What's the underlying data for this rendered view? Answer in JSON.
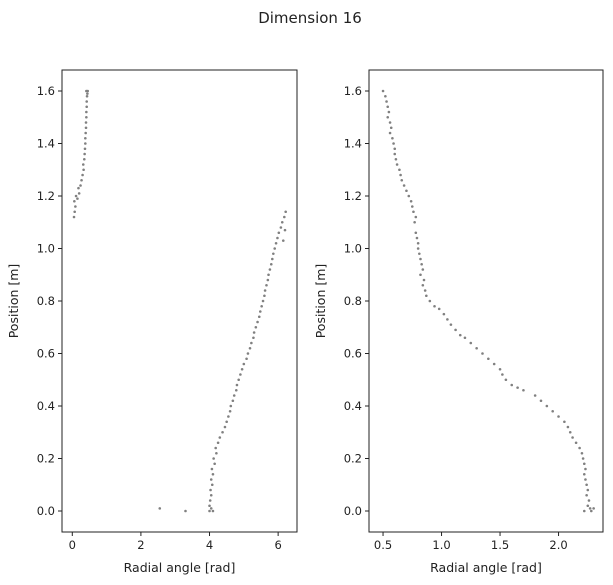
{
  "chart_data": {
    "title": "Dimension 16",
    "type": "scatter",
    "marker_color": "#808080",
    "grid": false,
    "subplots": [
      {
        "type": "scatter",
        "xlabel": "Radial angle [rad]",
        "ylabel": "Position [m]",
        "xlim": [
          -0.3,
          6.55
        ],
        "ylim": [
          -0.08,
          1.68
        ],
        "xticks": [
          0,
          2,
          4,
          6
        ],
        "xtick_labels": [
          "0",
          "2",
          "4",
          "6"
        ],
        "yticks": [
          0.0,
          0.2,
          0.4,
          0.6,
          0.8,
          1.0,
          1.2,
          1.4,
          1.6
        ],
        "ytick_labels": [
          "0.0",
          "0.2",
          "0.4",
          "0.6",
          "0.8",
          "1.0",
          "1.2",
          "1.4",
          "1.6"
        ],
        "points": [
          [
            0.05,
            1.12
          ],
          [
            0.07,
            1.14
          ],
          [
            0.09,
            1.16
          ],
          [
            0.06,
            1.18
          ],
          [
            0.11,
            1.2
          ],
          [
            0.15,
            1.19
          ],
          [
            0.2,
            1.21
          ],
          [
            0.18,
            1.23
          ],
          [
            0.24,
            1.24
          ],
          [
            0.27,
            1.26
          ],
          [
            0.3,
            1.28
          ],
          [
            0.33,
            1.3
          ],
          [
            0.32,
            1.32
          ],
          [
            0.35,
            1.34
          ],
          [
            0.36,
            1.36
          ],
          [
            0.37,
            1.38
          ],
          [
            0.38,
            1.4
          ],
          [
            0.38,
            1.42
          ],
          [
            0.39,
            1.44
          ],
          [
            0.4,
            1.46
          ],
          [
            0.4,
            1.48
          ],
          [
            0.41,
            1.5
          ],
          [
            0.41,
            1.52
          ],
          [
            0.42,
            1.54
          ],
          [
            0.42,
            1.56
          ],
          [
            0.43,
            1.58
          ],
          [
            0.44,
            1.59
          ],
          [
            0.45,
            1.6
          ],
          [
            0.41,
            1.6
          ],
          [
            2.55,
            0.01
          ],
          [
            3.3,
            0.0
          ],
          [
            4.0,
            0.0
          ],
          [
            4.05,
            0.01
          ],
          [
            4.1,
            0.0
          ],
          [
            4.0,
            0.02
          ],
          [
            4.02,
            0.04
          ],
          [
            4.05,
            0.06
          ],
          [
            4.03,
            0.08
          ],
          [
            4.08,
            0.1
          ],
          [
            4.05,
            0.12
          ],
          [
            4.1,
            0.14
          ],
          [
            4.07,
            0.16
          ],
          [
            4.15,
            0.18
          ],
          [
            4.12,
            0.2
          ],
          [
            4.2,
            0.22
          ],
          [
            4.18,
            0.24
          ],
          [
            4.25,
            0.26
          ],
          [
            4.3,
            0.28
          ],
          [
            4.38,
            0.3
          ],
          [
            4.45,
            0.32
          ],
          [
            4.5,
            0.34
          ],
          [
            4.55,
            0.36
          ],
          [
            4.6,
            0.38
          ],
          [
            4.62,
            0.4
          ],
          [
            4.68,
            0.42
          ],
          [
            4.72,
            0.44
          ],
          [
            4.78,
            0.46
          ],
          [
            4.8,
            0.48
          ],
          [
            4.85,
            0.5
          ],
          [
            4.9,
            0.52
          ],
          [
            4.95,
            0.54
          ],
          [
            5.0,
            0.56
          ],
          [
            5.08,
            0.58
          ],
          [
            5.12,
            0.6
          ],
          [
            5.18,
            0.62
          ],
          [
            5.22,
            0.64
          ],
          [
            5.28,
            0.66
          ],
          [
            5.3,
            0.68
          ],
          [
            5.35,
            0.7
          ],
          [
            5.4,
            0.72
          ],
          [
            5.45,
            0.74
          ],
          [
            5.48,
            0.76
          ],
          [
            5.52,
            0.78
          ],
          [
            5.56,
            0.8
          ],
          [
            5.6,
            0.82
          ],
          [
            5.62,
            0.84
          ],
          [
            5.66,
            0.86
          ],
          [
            5.7,
            0.88
          ],
          [
            5.72,
            0.9
          ],
          [
            5.76,
            0.92
          ],
          [
            5.8,
            0.94
          ],
          [
            5.83,
            0.96
          ],
          [
            5.86,
            0.98
          ],
          [
            5.9,
            1.0
          ],
          [
            5.94,
            1.02
          ],
          [
            5.98,
            1.04
          ],
          [
            6.02,
            1.06
          ],
          [
            6.08,
            1.08
          ],
          [
            6.12,
            1.1
          ],
          [
            6.18,
            1.12
          ],
          [
            6.22,
            1.14
          ],
          [
            6.2,
            1.07
          ],
          [
            6.15,
            1.03
          ]
        ]
      },
      {
        "type": "scatter",
        "xlabel": "Radial angle [rad]",
        "ylabel": "Position [m]",
        "xlim": [
          0.38,
          2.38
        ],
        "ylim": [
          -0.08,
          1.68
        ],
        "xticks": [
          0.5,
          1.0,
          1.5,
          2.0
        ],
        "xtick_labels": [
          "0.5",
          "1.0",
          "1.5",
          "2.0"
        ],
        "yticks": [
          0.0,
          0.2,
          0.4,
          0.6,
          0.8,
          1.0,
          1.2,
          1.4,
          1.6
        ],
        "ytick_labels": [
          "0.0",
          "0.2",
          "0.4",
          "0.6",
          "0.8",
          "1.0",
          "1.2",
          "1.4",
          "1.6"
        ],
        "points": [
          [
            0.5,
            1.6
          ],
          [
            0.52,
            1.58
          ],
          [
            0.53,
            1.56
          ],
          [
            0.54,
            1.54
          ],
          [
            0.55,
            1.52
          ],
          [
            0.54,
            1.5
          ],
          [
            0.56,
            1.48
          ],
          [
            0.57,
            1.46
          ],
          [
            0.56,
            1.44
          ],
          [
            0.58,
            1.42
          ],
          [
            0.59,
            1.4
          ],
          [
            0.6,
            1.38
          ],
          [
            0.6,
            1.36
          ],
          [
            0.61,
            1.34
          ],
          [
            0.62,
            1.32
          ],
          [
            0.64,
            1.3
          ],
          [
            0.65,
            1.28
          ],
          [
            0.66,
            1.26
          ],
          [
            0.68,
            1.24
          ],
          [
            0.7,
            1.22
          ],
          [
            0.72,
            1.2
          ],
          [
            0.74,
            1.18
          ],
          [
            0.75,
            1.16
          ],
          [
            0.76,
            1.14
          ],
          [
            0.78,
            1.12
          ],
          [
            0.77,
            1.1
          ],
          [
            0.78,
            1.06
          ],
          [
            0.79,
            1.04
          ],
          [
            0.8,
            1.02
          ],
          [
            0.8,
            1.0
          ],
          [
            0.81,
            0.98
          ],
          [
            0.82,
            0.96
          ],
          [
            0.83,
            0.94
          ],
          [
            0.84,
            0.92
          ],
          [
            0.82,
            0.9
          ],
          [
            0.85,
            0.88
          ],
          [
            0.84,
            0.86
          ],
          [
            0.86,
            0.84
          ],
          [
            0.87,
            0.82
          ],
          [
            0.9,
            0.8
          ],
          [
            0.94,
            0.78
          ],
          [
            0.98,
            0.77
          ],
          [
            1.02,
            0.75
          ],
          [
            1.05,
            0.73
          ],
          [
            1.08,
            0.71
          ],
          [
            1.12,
            0.69
          ],
          [
            1.16,
            0.67
          ],
          [
            1.2,
            0.66
          ],
          [
            1.25,
            0.64
          ],
          [
            1.3,
            0.62
          ],
          [
            1.35,
            0.6
          ],
          [
            1.4,
            0.58
          ],
          [
            1.45,
            0.56
          ],
          [
            1.5,
            0.54
          ],
          [
            1.52,
            0.52
          ],
          [
            1.55,
            0.5
          ],
          [
            1.6,
            0.48
          ],
          [
            1.65,
            0.47
          ],
          [
            1.7,
            0.46
          ],
          [
            1.8,
            0.44
          ],
          [
            1.85,
            0.42
          ],
          [
            1.9,
            0.4
          ],
          [
            1.95,
            0.38
          ],
          [
            2.0,
            0.36
          ],
          [
            2.05,
            0.34
          ],
          [
            2.08,
            0.32
          ],
          [
            2.1,
            0.3
          ],
          [
            2.12,
            0.28
          ],
          [
            2.15,
            0.26
          ],
          [
            2.18,
            0.24
          ],
          [
            2.2,
            0.22
          ],
          [
            2.21,
            0.2
          ],
          [
            2.22,
            0.18
          ],
          [
            2.23,
            0.16
          ],
          [
            2.22,
            0.14
          ],
          [
            2.23,
            0.12
          ],
          [
            2.24,
            0.1
          ],
          [
            2.25,
            0.08
          ],
          [
            2.24,
            0.06
          ],
          [
            2.26,
            0.04
          ],
          [
            2.25,
            0.02
          ],
          [
            2.27,
            0.01
          ],
          [
            2.3,
            0.01
          ],
          [
            2.22,
            0.0
          ],
          [
            2.28,
            0.0
          ]
        ]
      }
    ]
  }
}
